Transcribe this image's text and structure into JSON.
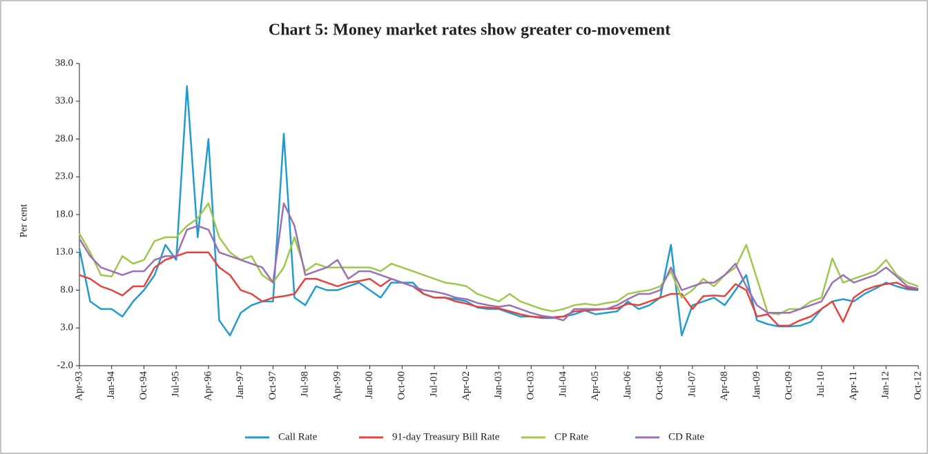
{
  "chart_data": {
    "type": "line",
    "title": "Chart 5: Money market rates show greater co-movement",
    "y_label": "Per cent",
    "categories": [
      "Apr-93",
      null,
      null,
      "Jan-94",
      null,
      null,
      "Oct-94",
      null,
      null,
      "Jul-95",
      null,
      null,
      "Apr-96",
      null,
      null,
      "Jan-97",
      null,
      null,
      "Oct-97",
      null,
      null,
      "Jul-98",
      null,
      null,
      "Apr-99",
      null,
      null,
      "Jan-00",
      null,
      null,
      "Oct-00",
      null,
      null,
      "Jul-01",
      null,
      null,
      "Apr-02",
      null,
      null,
      "Jan-03",
      null,
      null,
      "Oct-03",
      null,
      null,
      "Jul-04",
      null,
      null,
      "Apr-05",
      null,
      null,
      "Jan-06",
      null,
      null,
      "Oct-06",
      null,
      null,
      "Jul-07",
      null,
      null,
      "Apr-08",
      null,
      null,
      "Jan-09",
      null,
      null,
      "Oct-09",
      null,
      null,
      "Jul-10",
      null,
      null,
      "Apr-11",
      null,
      null,
      "Jan-12",
      null,
      null,
      "Oct-12"
    ],
    "series": [
      {
        "name": "Call Rate",
        "color": "#1f9bcf",
        "values": [
          13.5,
          6.5,
          5.5,
          5.5,
          4.5,
          6.5,
          8,
          10,
          14,
          12,
          35,
          15,
          28,
          4,
          2,
          5,
          6,
          6.5,
          6.5,
          28.7,
          7,
          6,
          8.5,
          8,
          8,
          8.5,
          9,
          8,
          7,
          9,
          9,
          9,
          7.5,
          7,
          7,
          6.8,
          6.5,
          5.7,
          5.5,
          5.5,
          5,
          4.5,
          4.5,
          4.3,
          4.3,
          4.5,
          4.8,
          5.3,
          4.8,
          5,
          5.2,
          6.5,
          5.5,
          6,
          7,
          14,
          2,
          6,
          6.5,
          7,
          6,
          8,
          10,
          4,
          3.5,
          3.2,
          3.2,
          3.3,
          3.8,
          5.5,
          6.5,
          6.8,
          6.5,
          7.5,
          8.2,
          9,
          8.5,
          8.1,
          8
        ]
      },
      {
        "name": "91-day Treasury Bill Rate",
        "color": "#e8413c",
        "values": [
          10,
          9.5,
          8.5,
          8,
          7.3,
          8.5,
          8.5,
          11,
          12,
          12.5,
          13,
          13,
          13,
          11,
          10,
          8,
          7.5,
          6.5,
          7,
          7.2,
          7.5,
          9.5,
          9.5,
          9,
          8.5,
          9,
          9.2,
          9.5,
          8.5,
          9.5,
          9,
          8.5,
          7.5,
          7,
          7,
          6.5,
          6.2,
          5.8,
          5.7,
          5.6,
          5.2,
          4.8,
          4.5,
          4.4,
          4.4,
          4.5,
          5.2,
          5.3,
          5.4,
          5.5,
          5.6,
          6.2,
          6,
          6.5,
          7,
          7.5,
          7.5,
          5.5,
          7.2,
          7.3,
          7.2,
          8.8,
          8,
          4.5,
          4.8,
          3.3,
          3.3,
          4,
          4.5,
          5.5,
          6.5,
          3.8,
          7,
          8,
          8.5,
          8.8,
          9,
          8.3,
          8.1
        ]
      },
      {
        "name": "CP Rate",
        "color": "#9dc84b",
        "values": [
          15.5,
          13,
          10,
          9.8,
          12.5,
          11.5,
          12,
          14.5,
          15,
          15,
          16.5,
          17.5,
          19.5,
          15,
          13,
          12,
          12.5,
          10,
          9,
          11,
          15,
          10.5,
          11.5,
          11,
          11,
          11,
          11,
          11,
          10.5,
          11.5,
          11,
          10.5,
          10,
          9.5,
          9,
          8.8,
          8.5,
          7.5,
          7,
          6.5,
          7.5,
          6.5,
          6,
          5.5,
          5.2,
          5.5,
          6,
          6.2,
          6,
          6.3,
          6.5,
          7.5,
          7.8,
          8,
          8.5,
          10.5,
          7,
          8,
          9.5,
          8.5,
          10,
          11,
          14,
          9.5,
          5,
          4.8,
          5.5,
          5.5,
          6.5,
          7,
          12.2,
          9,
          9.5,
          10,
          10.5,
          12,
          10,
          9,
          8.5
        ]
      },
      {
        "name": "CD Rate",
        "color": "#9b6fb5",
        "values": [
          14.8,
          12.5,
          11,
          10.5,
          10,
          10.5,
          10.5,
          12,
          12.5,
          12.5,
          16,
          16.5,
          16,
          13,
          12.5,
          12,
          11.5,
          11,
          9,
          19.5,
          16.5,
          10,
          10.5,
          11,
          12,
          9.5,
          10.5,
          10.5,
          10,
          9.5,
          9,
          8.5,
          8,
          7.8,
          7.5,
          7,
          6.8,
          6.3,
          6,
          5.8,
          6,
          5.5,
          5,
          4.6,
          4.4,
          4,
          5.5,
          5.5,
          5.5,
          5.5,
          6,
          6.8,
          7.5,
          7.5,
          8,
          11,
          8,
          8.5,
          9,
          9,
          10,
          11.5,
          8.5,
          6,
          5,
          5,
          5,
          5.5,
          6,
          6.5,
          9,
          10,
          9,
          9.5,
          10,
          11,
          9.8,
          8.5,
          8.2
        ]
      }
    ],
    "ylim": [
      -2,
      38
    ],
    "yticks": [
      {
        "value": -2,
        "label": "-2.0"
      },
      {
        "value": 3,
        "label": "3.0"
      },
      {
        "value": 8,
        "label": "8.0"
      },
      {
        "value": 13,
        "label": "13.0"
      },
      {
        "value": 18,
        "label": "18.0"
      },
      {
        "value": 23,
        "label": "23.0"
      },
      {
        "value": 28,
        "label": "28.0"
      },
      {
        "value": 33,
        "label": "33.0"
      },
      {
        "value": 38,
        "label": "38.0"
      }
    ],
    "grid": false,
    "legend": "bottom"
  }
}
